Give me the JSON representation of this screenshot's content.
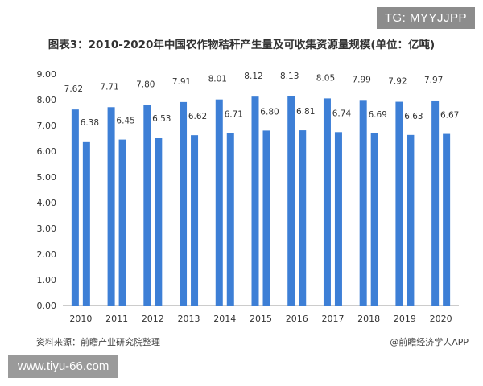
{
  "watermark_badge": "TG: MYYJJPP",
  "url_badge": "www.tiyu-66.com",
  "source_left": "资料来源：前瞻产业研究院整理",
  "source_right": "@前瞻经济学人APP",
  "colors": {
    "bar_primary": "#3d7fd6",
    "bar_secondary": "#3d7fd6",
    "axis": "#999999",
    "text": "#333333"
  },
  "chart_data": {
    "type": "bar",
    "title": "图表3：2010-2020年中国农作物秸秆产生量及可收集资源量规模(单位：亿吨)",
    "categories": [
      "2010",
      "2011",
      "2012",
      "2013",
      "2014",
      "2015",
      "2016",
      "2017",
      "2018",
      "2019",
      "2020"
    ],
    "series": [
      {
        "values": [
          7.62,
          7.71,
          7.8,
          7.91,
          8.01,
          8.12,
          8.13,
          8.05,
          7.99,
          7.92,
          7.97
        ]
      },
      {
        "values": [
          6.38,
          6.45,
          6.53,
          6.62,
          6.71,
          6.8,
          6.81,
          6.74,
          6.69,
          6.63,
          6.67
        ]
      }
    ],
    "yticks": [
      "0.00",
      "1.00",
      "2.00",
      "3.00",
      "4.00",
      "5.00",
      "6.00",
      "7.00",
      "8.00",
      "9.00"
    ],
    "ylim": [
      0,
      9
    ],
    "grid": false,
    "legend": "none"
  }
}
